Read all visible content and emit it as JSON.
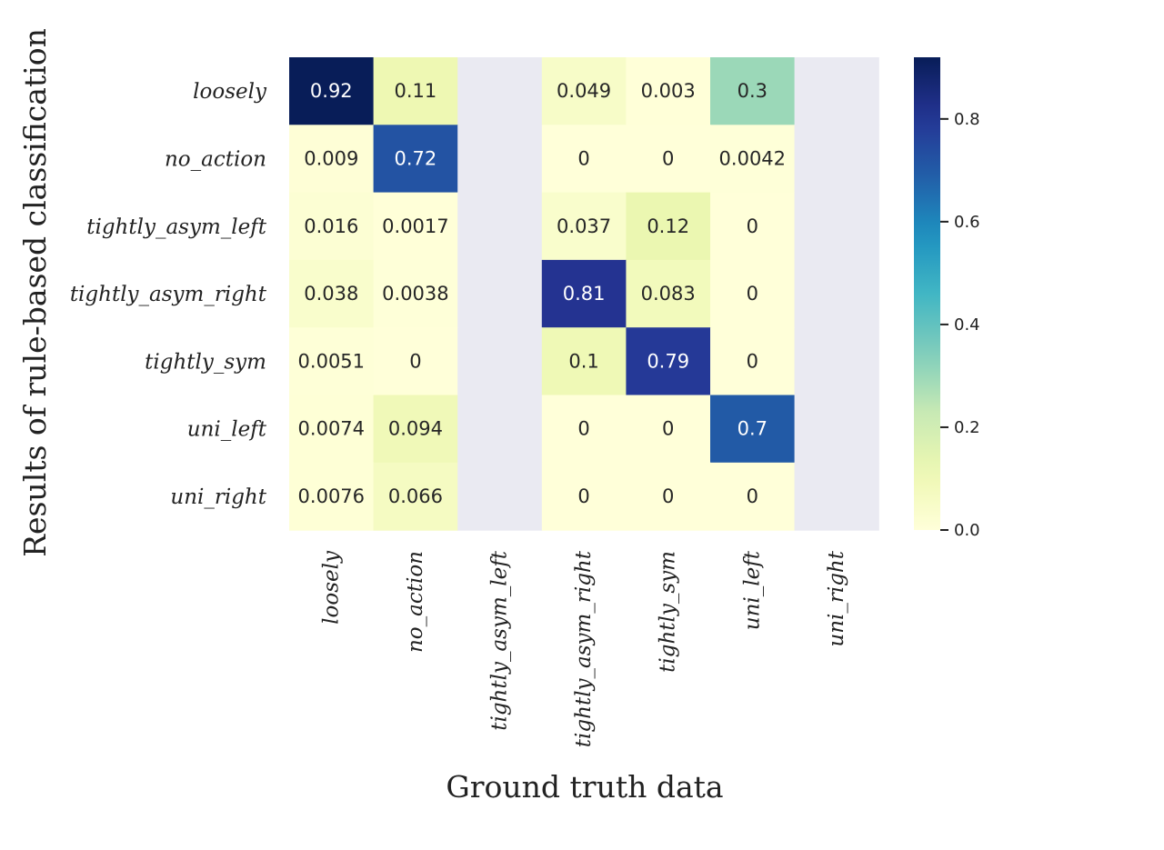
{
  "chart_data": {
    "type": "heatmap",
    "title": "",
    "xlabel": "Ground truth data",
    "ylabel": "Results of rule-based classification",
    "x_categories": [
      "loosely",
      "no_action",
      "tightly_asym_left",
      "tightly_asym_right",
      "tightly_sym",
      "uni_left",
      "uni_right"
    ],
    "y_categories": [
      "loosely",
      "no_action",
      "tightly_asym_left",
      "tightly_asym_right",
      "tightly_sym",
      "uni_left",
      "uni_right"
    ],
    "values": [
      [
        0.92,
        0.11,
        null,
        0.049,
        0.003,
        0.3,
        null
      ],
      [
        0.009,
        0.72,
        null,
        0,
        0,
        0.0042,
        null
      ],
      [
        0.016,
        0.0017,
        null,
        0.037,
        0.12,
        0,
        null
      ],
      [
        0.038,
        0.0038,
        null,
        0.81,
        0.083,
        0,
        null
      ],
      [
        0.0051,
        0,
        null,
        0.1,
        0.79,
        0,
        null
      ],
      [
        0.0074,
        0.094,
        null,
        0,
        0,
        0.7,
        null
      ],
      [
        0.0076,
        0.066,
        null,
        0,
        0,
        0,
        null
      ]
    ],
    "value_labels": [
      [
        "0.92",
        "0.11",
        "",
        "0.049",
        "0.003",
        "0.3",
        ""
      ],
      [
        "0.009",
        "0.72",
        "",
        "0",
        "0",
        "0.0042",
        ""
      ],
      [
        "0.016",
        "0.0017",
        "",
        "0.037",
        "0.12",
        "0",
        ""
      ],
      [
        "0.038",
        "0.0038",
        "",
        "0.81",
        "0.083",
        "0",
        ""
      ],
      [
        "0.0051",
        "0",
        "",
        "0.1",
        "0.79",
        "0",
        ""
      ],
      [
        "0.0074",
        "0.094",
        "",
        "0",
        "0",
        "0.7",
        ""
      ],
      [
        "0.0076",
        "0.066",
        "",
        "0",
        "0",
        "0",
        ""
      ]
    ],
    "colorbar": {
      "colormap": "YlGnBu",
      "range": [
        0,
        0.92
      ],
      "ticks": [
        0.0,
        0.2,
        0.4,
        0.6,
        0.8
      ],
      "tick_labels": [
        "0.0",
        "0.2",
        "0.4",
        "0.6",
        "0.8"
      ]
    },
    "missing_color": "#eaeaf2"
  }
}
